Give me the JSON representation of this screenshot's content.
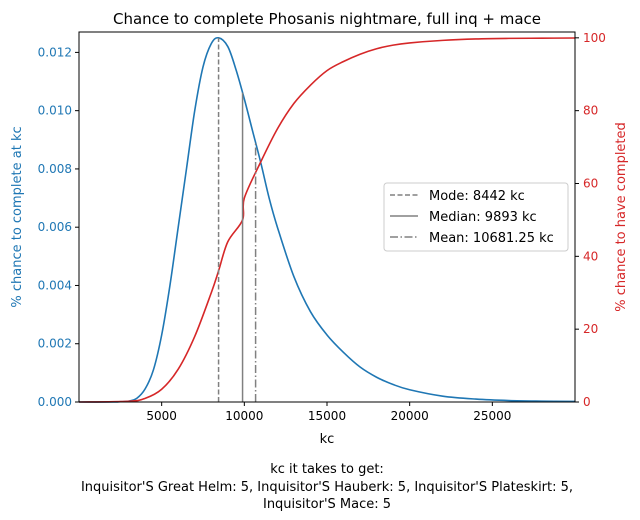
{
  "chart_data": {
    "type": "line",
    "title": "Chance to complete Phosanis nightmare, full inq + mace",
    "xlabel": "kc",
    "ylabel_left": "% chance to complete at kc",
    "ylabel_right": "% chance to have completed",
    "xlim": [
      0,
      30000
    ],
    "ylim_left": [
      0,
      0.0127
    ],
    "ylim_right": [
      0,
      101.6
    ],
    "x_ticks": [
      5000,
      10000,
      15000,
      20000,
      25000
    ],
    "x_tick_labels": [
      "5000",
      "10000",
      "15000",
      "20000",
      "25000"
    ],
    "y_left_ticks": [
      0,
      0.002,
      0.004,
      0.006,
      0.008,
      0.01,
      0.012
    ],
    "y_left_tick_labels": [
      "0.000",
      "0.002",
      "0.004",
      "0.006",
      "0.008",
      "0.010",
      "0.012"
    ],
    "y_right_ticks": [
      0,
      20,
      40,
      60,
      80,
      100
    ],
    "y_right_tick_labels": [
      "0",
      "20",
      "40",
      "60",
      "80",
      "100"
    ],
    "grid": false,
    "legend_position": "center-right",
    "colors": {
      "pmf": "#1f77b4",
      "cdf": "#d62728",
      "stat_lines": "#808080"
    },
    "series": [
      {
        "axis": "left",
        "x": [
          0,
          2000,
          2500,
          3000,
          3500,
          4000,
          4500,
          5000,
          5500,
          6000,
          6500,
          7000,
          7500,
          8000,
          8442,
          9000,
          9500,
          10000,
          10500,
          11000,
          11500,
          12000,
          13000,
          14000,
          15000,
          16000,
          17000,
          18000,
          19000,
          20000,
          22000,
          24000,
          26000,
          28000,
          30000
        ],
        "values": [
          0,
          0,
          1e-05,
          3e-05,
          0.00013,
          0.00045,
          0.0011,
          0.0023,
          0.004,
          0.006,
          0.008,
          0.01,
          0.0115,
          0.0123,
          0.0125,
          0.0122,
          0.0114,
          0.0104,
          0.0093,
          0.0082,
          0.007,
          0.006,
          0.0043,
          0.0031,
          0.0023,
          0.0017,
          0.0012,
          0.00085,
          0.0006,
          0.00042,
          0.0002,
          0.0001,
          5e-05,
          3e-05,
          2e-05
        ]
      },
      {
        "axis": "right",
        "x": [
          0,
          3000,
          4000,
          5000,
          6000,
          7000,
          8000,
          8442,
          9000,
          9893,
          10000,
          11000,
          12000,
          13000,
          14000,
          15000,
          16000,
          17000,
          18000,
          19000,
          20000,
          22000,
          24000,
          26000,
          28000,
          30000
        ],
        "values": [
          0,
          0.2,
          1.0,
          3.5,
          9,
          18,
          30,
          36,
          44,
          50,
          56,
          66,
          75,
          82,
          87,
          91,
          93.5,
          95.5,
          97,
          98,
          98.6,
          99.3,
          99.7,
          99.85,
          99.9,
          99.95
        ]
      }
    ],
    "stat_lines": [
      {
        "label": "Mode: 8442 kc",
        "x": 8442,
        "style": "dashed"
      },
      {
        "label": "Median: 9893 kc",
        "x": 9893,
        "style": "solid"
      },
      {
        "label": "Mean: 10681.25 kc",
        "x": 10681.25,
        "style": "dashdot"
      }
    ],
    "caption_lines": [
      "kc it takes to get:",
      "Inquisitor'S Great Helm: 5,  Inquisitor'S Hauberk: 5,  Inquisitor'S Plateskirt: 5,",
      "Inquisitor'S Mace: 5"
    ]
  }
}
